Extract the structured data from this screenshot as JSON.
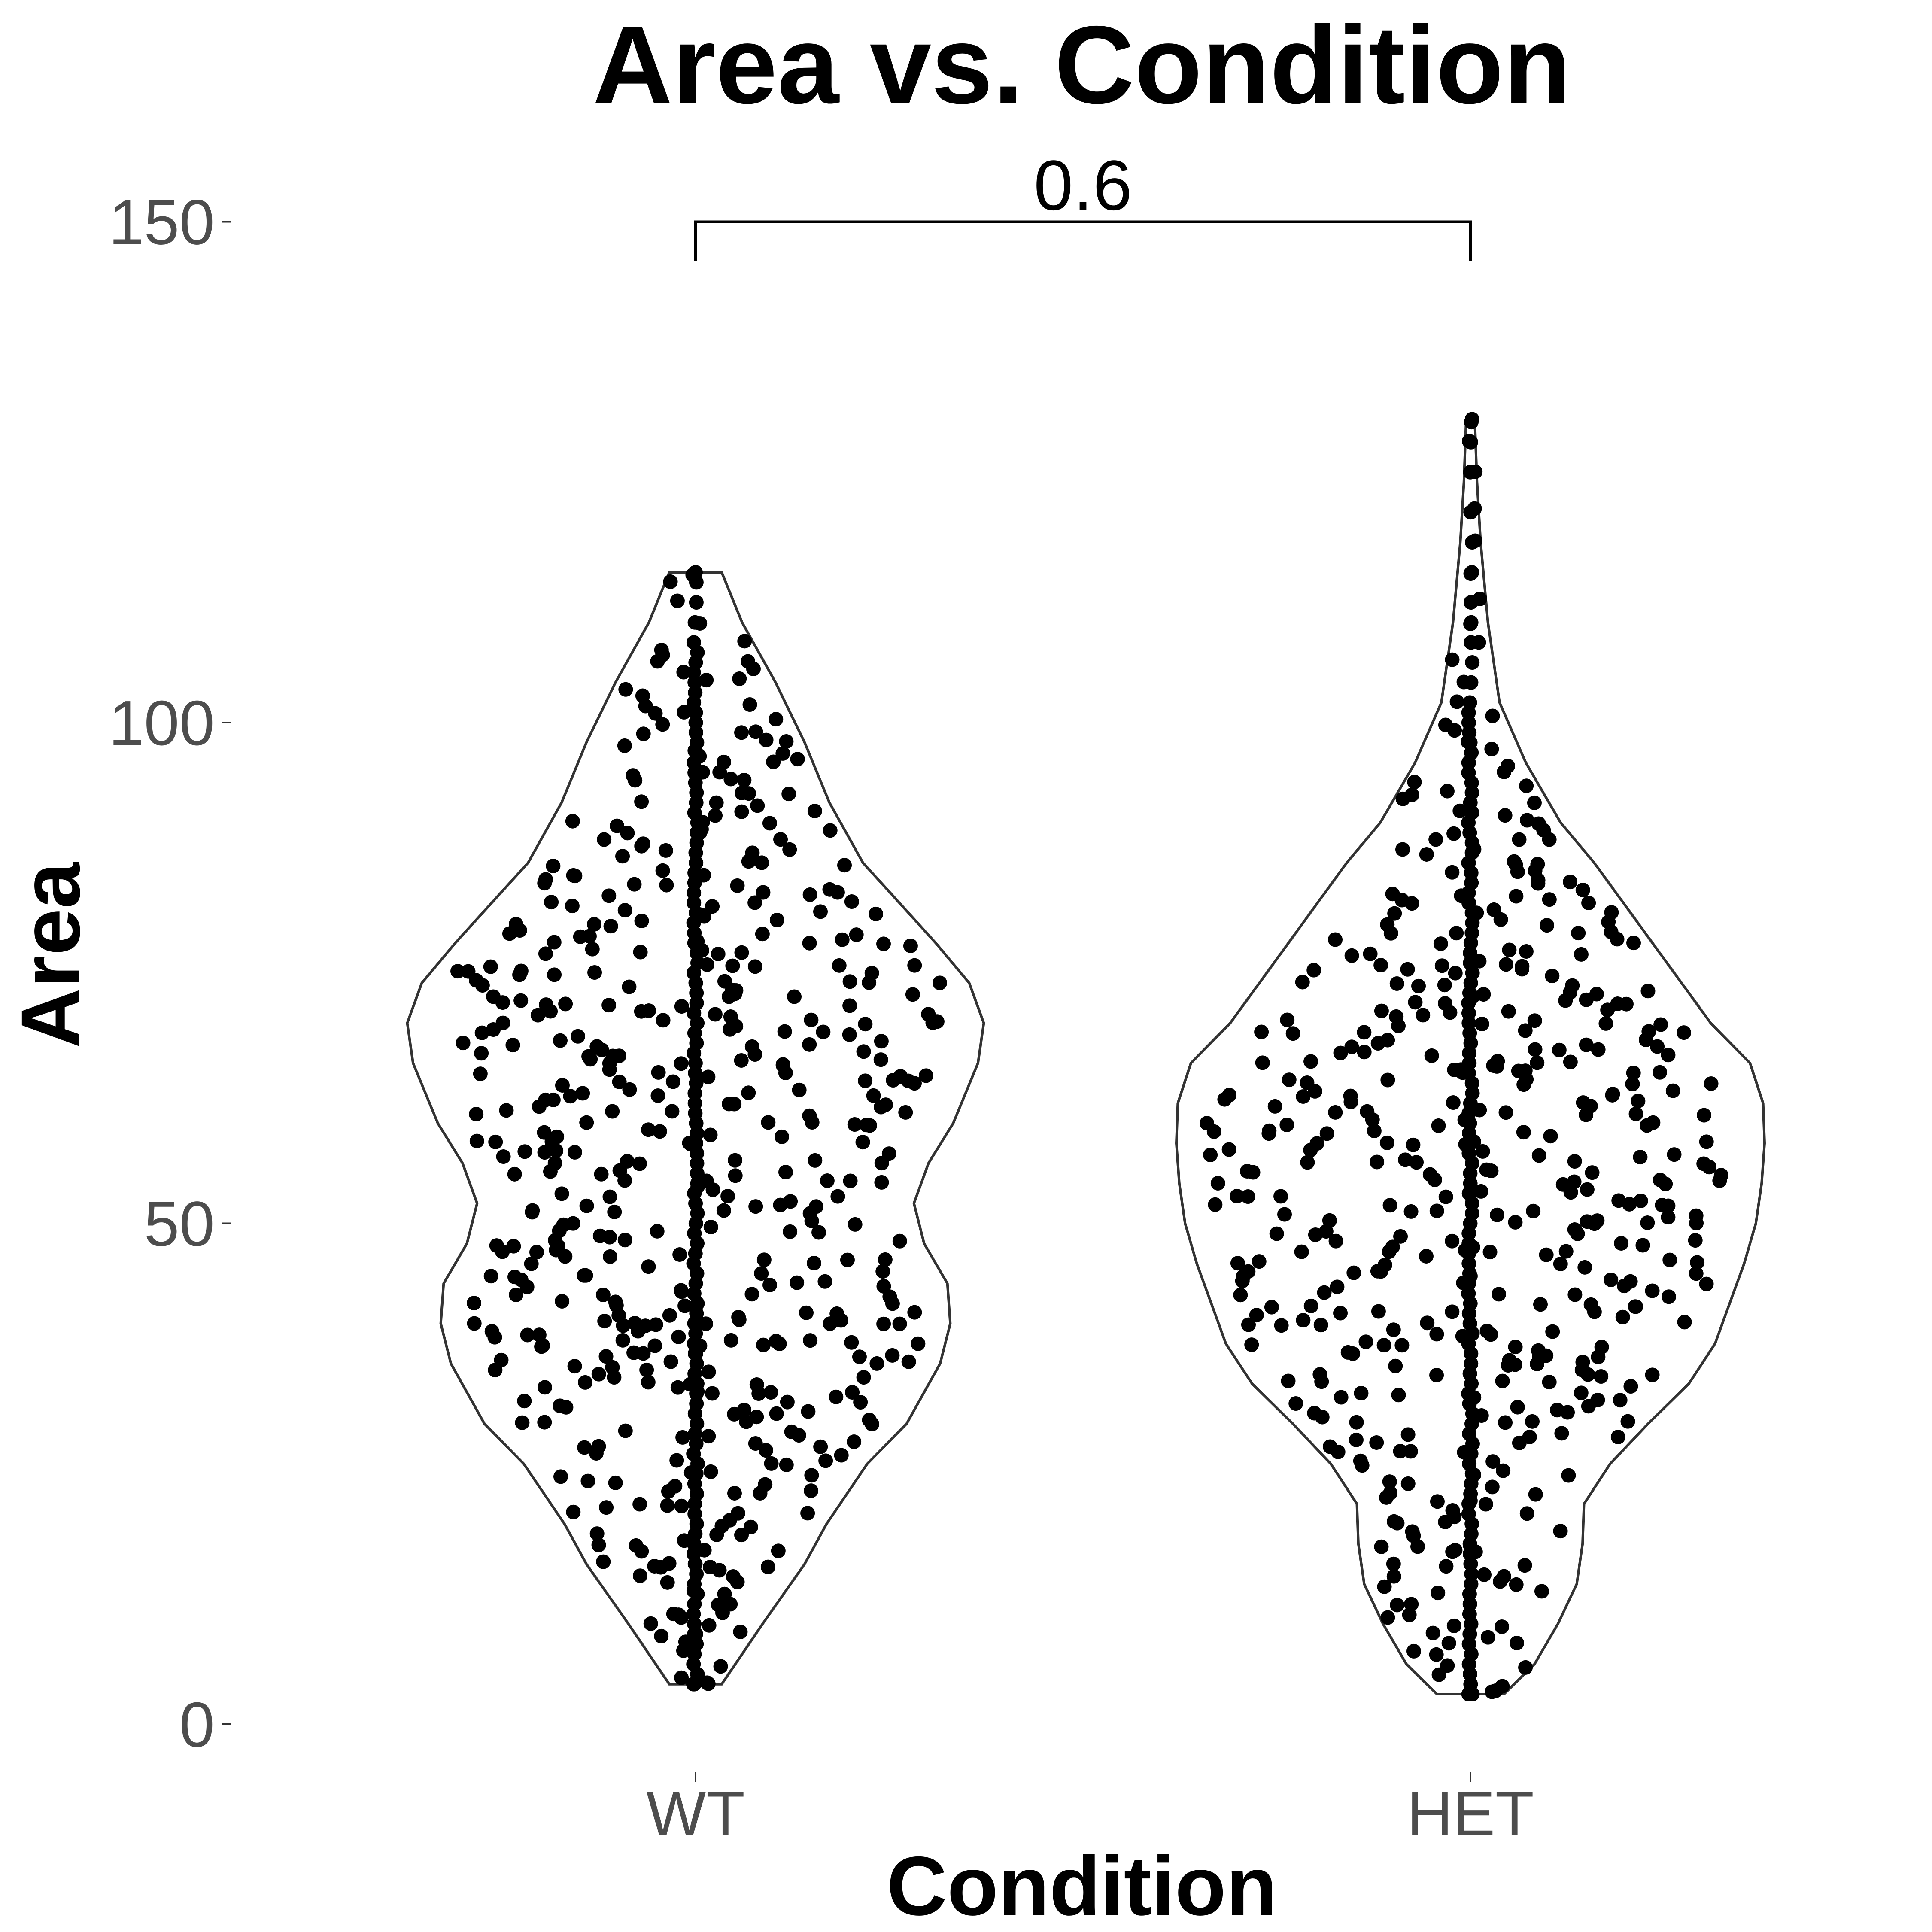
{
  "chart_data": {
    "type": "violin",
    "title": "Area vs. Condition",
    "xlabel": "Condition",
    "ylabel": "Area",
    "ylim": [
      0,
      150
    ],
    "y_ticks": [
      0,
      50,
      100,
      150
    ],
    "categories": [
      "WT",
      "HET"
    ],
    "comparison": {
      "groups": [
        "WT",
        "HET"
      ],
      "label": "0.6",
      "y": 150
    },
    "grid": false,
    "legend": "none",
    "series": [
      {
        "category": "WT",
        "min": 4,
        "max": 115,
        "density_profile": [
          [
            4,
            0.18
          ],
          [
            10,
            0.46
          ],
          [
            16,
            0.75
          ],
          [
            20,
            0.9
          ],
          [
            26,
            1.18
          ],
          [
            30,
            1.45
          ],
          [
            36,
            1.68
          ],
          [
            40,
            1.75
          ],
          [
            44,
            1.73
          ],
          [
            48,
            1.57
          ],
          [
            52,
            1.5
          ],
          [
            56,
            1.6
          ],
          [
            60,
            1.77
          ],
          [
            66,
            1.94
          ],
          [
            70,
            1.98
          ],
          [
            74,
            1.88
          ],
          [
            78,
            1.65
          ],
          [
            82,
            1.4
          ],
          [
            86,
            1.15
          ],
          [
            92,
            0.92
          ],
          [
            98,
            0.75
          ],
          [
            104,
            0.55
          ],
          [
            110,
            0.32
          ],
          [
            115,
            0.18
          ]
        ],
        "points": [
          4,
          4,
          5,
          6,
          7,
          8,
          8,
          9,
          9,
          10,
          11,
          11,
          12,
          13,
          14,
          15,
          16,
          16,
          17,
          18,
          19,
          20,
          21,
          22,
          23,
          24,
          25,
          26,
          27,
          28,
          29,
          30,
          31,
          32,
          33,
          34,
          35,
          36,
          37,
          38,
          38,
          39,
          40,
          40,
          41,
          42,
          43,
          44,
          45,
          46,
          47,
          48,
          49,
          50,
          51,
          52,
          53,
          54,
          55,
          56,
          57,
          58,
          59,
          60,
          61,
          62,
          63,
          64,
          65,
          66,
          67,
          68,
          69,
          70,
          71,
          72,
          73,
          74,
          75,
          76,
          77,
          78,
          79,
          80,
          81,
          82,
          83,
          84,
          85,
          86,
          87,
          88,
          89,
          90,
          91,
          92,
          93,
          94,
          95,
          96,
          97,
          98,
          99,
          100,
          101,
          102,
          103,
          104,
          105,
          106,
          107,
          108,
          110,
          112,
          114,
          115
        ]
      },
      {
        "category": "HET",
        "min": 3,
        "max": 130,
        "density_profile": [
          [
            3,
            0.23
          ],
          [
            6,
            0.44
          ],
          [
            10,
            0.6
          ],
          [
            14,
            0.73
          ],
          [
            18,
            0.77
          ],
          [
            22,
            0.78
          ],
          [
            26,
            0.96
          ],
          [
            30,
            1.22
          ],
          [
            34,
            1.5
          ],
          [
            38,
            1.68
          ],
          [
            42,
            1.78
          ],
          [
            46,
            1.88
          ],
          [
            50,
            1.96
          ],
          [
            54,
            2.0
          ],
          [
            58,
            2.02
          ],
          [
            62,
            2.01
          ],
          [
            66,
            1.92
          ],
          [
            70,
            1.65
          ],
          [
            74,
            1.45
          ],
          [
            78,
            1.25
          ],
          [
            82,
            1.05
          ],
          [
            86,
            0.85
          ],
          [
            90,
            0.62
          ],
          [
            96,
            0.38
          ],
          [
            102,
            0.2
          ],
          [
            110,
            0.12
          ],
          [
            118,
            0.07
          ],
          [
            124,
            0.045
          ],
          [
            130,
            0.03
          ]
        ],
        "points": [
          3,
          3,
          4,
          5,
          6,
          7,
          8,
          9,
          10,
          11,
          12,
          13,
          14,
          15,
          16,
          17,
          18,
          19,
          20,
          21,
          22,
          23,
          24,
          25,
          26,
          27,
          28,
          29,
          30,
          31,
          32,
          33,
          34,
          35,
          36,
          37,
          38,
          39,
          40,
          41,
          42,
          43,
          44,
          45,
          46,
          47,
          48,
          49,
          50,
          51,
          52,
          53,
          54,
          55,
          56,
          57,
          58,
          59,
          60,
          61,
          62,
          63,
          64,
          65,
          66,
          67,
          68,
          69,
          70,
          71,
          72,
          73,
          74,
          75,
          76,
          77,
          78,
          79,
          80,
          81,
          82,
          83,
          84,
          85,
          86,
          87,
          88,
          89,
          90,
          91,
          92,
          93,
          94,
          95,
          96,
          97,
          98,
          99,
          100,
          101,
          102,
          104,
          106,
          108,
          110,
          112,
          115,
          118,
          121,
          125,
          128,
          130
        ]
      }
    ],
    "colors": {
      "points": "#000000",
      "outline": "#333333",
      "tick_labels": "#4d4d4d"
    }
  }
}
